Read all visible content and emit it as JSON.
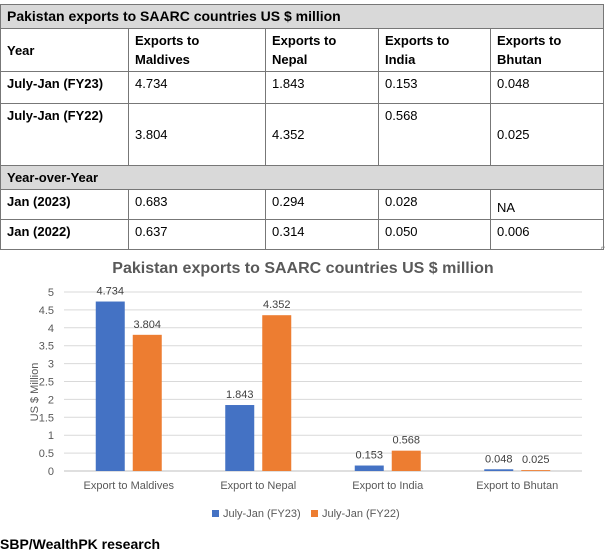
{
  "table": {
    "title": "Pakistan exports to SAARC countries US $ million",
    "header": {
      "year": "Year",
      "cols": [
        {
          "l1": "Exports to",
          "l2": "Maldives"
        },
        {
          "l1": "Exports to",
          "l2": "Nepal"
        },
        {
          "l1": "Exports to",
          "l2": "India"
        },
        {
          "l1": "Exports to",
          "l2": "Bhutan"
        }
      ]
    },
    "rows": [
      {
        "label": "July-Jan (FY23)",
        "values": [
          "4.734",
          "1.843",
          "0.153",
          "0.048"
        ]
      },
      {
        "label": "July-Jan (FY22)",
        "values": [
          "3.804",
          "4.352",
          "0.568",
          "0.025"
        ]
      }
    ],
    "section": "Year-over-Year",
    "yoy_rows": [
      {
        "label": "Jan (2023)",
        "values": [
          "0.683",
          "0.294",
          "0.028",
          "NA"
        ]
      },
      {
        "label": "Jan (2022)",
        "values": [
          "0.637",
          "0.314",
          "0.050",
          "0.006"
        ]
      }
    ]
  },
  "chart_data": {
    "type": "bar",
    "title": "Pakistan exports to SAARC countries US $ million",
    "ylabel": "US $ Million",
    "xlabel": "",
    "categories": [
      "Export to Maldives",
      "Export to Nepal",
      "Export to India",
      "Export to Bhutan"
    ],
    "series": [
      {
        "name": "July-Jan (FY23)",
        "color": "#4472c4",
        "values": [
          4.734,
          1.843,
          0.153,
          0.048
        ]
      },
      {
        "name": "July-Jan (FY22)",
        "color": "#ed7d31",
        "values": [
          3.804,
          4.352,
          0.568,
          0.025
        ]
      }
    ],
    "ylim": [
      0,
      5
    ],
    "yticks": [
      "0",
      "0.5",
      "1",
      "1.5",
      "2",
      "2.5",
      "3",
      "3.5",
      "4",
      "4.5",
      "5"
    ],
    "grid": true,
    "legend": "bottom"
  },
  "source": "SBP/WealthPK research"
}
